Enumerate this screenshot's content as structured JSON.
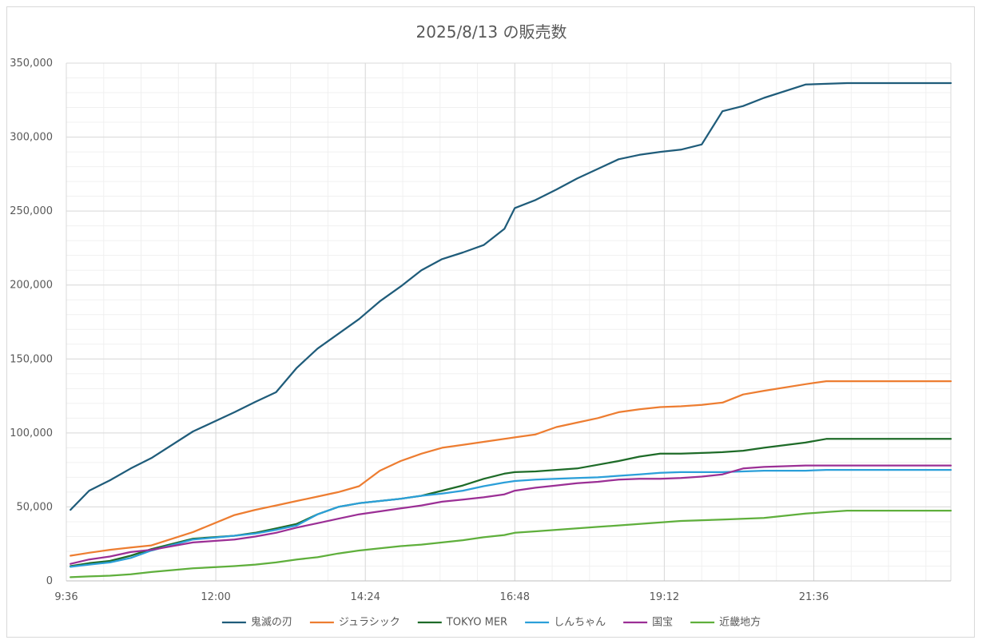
{
  "chart_data": {
    "type": "line",
    "title": "2025/8/13 の販売数",
    "xlabel": "",
    "ylabel": "",
    "ylim": [
      0,
      350000
    ],
    "yticks": [
      "0",
      "50,000",
      "100,000",
      "150,000",
      "200,000",
      "250,000",
      "300,000",
      "350,000"
    ],
    "ytick_values": [
      0,
      50000,
      100000,
      150000,
      200000,
      250000,
      300000,
      350000
    ],
    "xlim": [
      "9:36",
      "23:48"
    ],
    "xticks": [
      "9:36",
      "12:00",
      "14:24",
      "16:48",
      "19:12",
      "21:36"
    ],
    "grid": true,
    "legend": "bottom",
    "x": [
      "9:40",
      "9:58",
      "10:18",
      "10:38",
      "10:58",
      "11:38",
      "12:18",
      "12:38",
      "12:58",
      "13:18",
      "13:38",
      "13:58",
      "14:18",
      "14:38",
      "14:58",
      "15:18",
      "15:38",
      "15:58",
      "16:18",
      "16:38",
      "16:48",
      "17:08",
      "17:28",
      "17:48",
      "18:08",
      "18:28",
      "18:48",
      "19:08",
      "19:28",
      "19:48",
      "20:08",
      "20:28",
      "20:48",
      "21:28",
      "21:48",
      "22:08",
      "22:48",
      "23:18",
      "23:48"
    ],
    "series": [
      {
        "name": "鬼滅の刃",
        "color": "#1f5c7a",
        "values": [
          48000,
          61000,
          68000,
          76000,
          83000,
          101000,
          114000,
          121000,
          127500,
          144000,
          157000,
          167000,
          177000,
          189000,
          199000,
          210000,
          217500,
          222000,
          227000,
          238000,
          252000,
          257500,
          264500,
          272000,
          278500,
          285000,
          288000,
          290000,
          291500,
          295000,
          317500,
          321000,
          326500,
          335500,
          336000,
          336500,
          336500,
          336500,
          336500
        ]
      },
      {
        "name": "ジュラシック",
        "color": "#ed7d31",
        "values": [
          17000,
          19000,
          21000,
          22500,
          24000,
          33000,
          44500,
          48000,
          51000,
          54000,
          57000,
          60000,
          64000,
          74500,
          81000,
          86000,
          90000,
          92000,
          94000,
          96000,
          97000,
          99000,
          104000,
          107000,
          110000,
          114000,
          116000,
          117500,
          118000,
          119000,
          120500,
          126000,
          128500,
          133000,
          135000,
          135000,
          135000,
          135000,
          135000
        ]
      },
      {
        "name": "TOKYO MER",
        "color": "#1e6b28",
        "values": [
          10000,
          12000,
          13500,
          17000,
          21500,
          28500,
          30500,
          32500,
          35500,
          38500,
          45000,
          50000,
          52500,
          54000,
          55500,
          57500,
          61000,
          64500,
          69000,
          72500,
          73500,
          74000,
          75000,
          76000,
          78500,
          81000,
          84000,
          86000,
          86000,
          86500,
          87000,
          88000,
          90000,
          93500,
          96000,
          96000,
          96000,
          96000,
          96000
        ]
      },
      {
        "name": "しんちゃん",
        "color": "#2b9fd9",
        "values": [
          9500,
          11000,
          12500,
          15500,
          20500,
          28000,
          30500,
          32000,
          34500,
          37500,
          45000,
          50000,
          52500,
          54000,
          55500,
          57500,
          59000,
          61000,
          64000,
          66500,
          67500,
          68500,
          69000,
          69500,
          70000,
          71000,
          72000,
          73000,
          73500,
          73500,
          73500,
          74000,
          74500,
          74500,
          75000,
          75000,
          75000,
          75000,
          75000
        ]
      },
      {
        "name": "国宝",
        "color": "#9b2f95",
        "values": [
          11500,
          14500,
          16500,
          19500,
          21000,
          26000,
          28000,
          30000,
          32500,
          36000,
          39000,
          42000,
          45000,
          47000,
          49000,
          51000,
          53500,
          55000,
          56500,
          58500,
          61000,
          63000,
          64500,
          66000,
          67000,
          68500,
          69000,
          69000,
          69500,
          70500,
          72000,
          76000,
          77000,
          78000,
          78000,
          78000,
          78000,
          78000,
          78000
        ]
      },
      {
        "name": "近畿地方",
        "color": "#5faf3c",
        "values": [
          2500,
          3000,
          3500,
          4500,
          6000,
          8500,
          10000,
          11000,
          12500,
          14500,
          16000,
          18500,
          20500,
          22000,
          23500,
          24500,
          26000,
          27500,
          29500,
          31000,
          32500,
          33500,
          34500,
          35500,
          36500,
          37500,
          38500,
          39500,
          40500,
          41000,
          41500,
          42000,
          42500,
          45500,
          46500,
          47500,
          47500,
          47500,
          47500
        ]
      }
    ]
  }
}
